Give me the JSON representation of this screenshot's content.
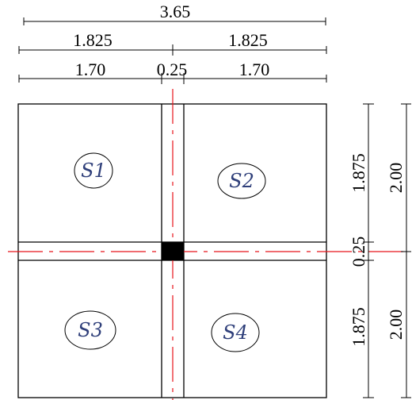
{
  "dimensions": {
    "overall_width": "3.65",
    "half_left": "1.825",
    "half_right": "1.825",
    "slab_left": "1.70",
    "beam_width": "0.25",
    "slab_right": "1.70",
    "upper_slab_depth": "1.875",
    "upper_span": "2.00",
    "beam_depth": "0.25",
    "lower_slab_depth": "1.875",
    "lower_span": "2.00"
  },
  "slabs": [
    {
      "label": "S1"
    },
    {
      "label": "S2"
    },
    {
      "label": "S3"
    },
    {
      "label": "S4"
    }
  ],
  "colors": {
    "axis_line": "#e8141b",
    "slab_label": "#2f3f7a",
    "column": "#000000"
  }
}
